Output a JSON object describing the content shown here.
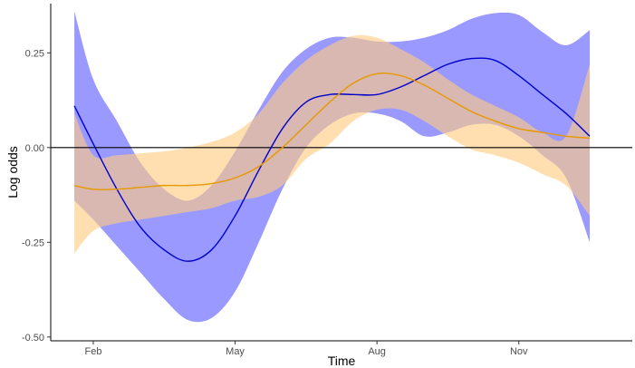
{
  "chart_data": {
    "type": "line",
    "title": "",
    "xlabel": "Time",
    "ylabel": "Log odds",
    "x_tick_labels": [
      "Feb",
      "May",
      "Aug",
      "Nov"
    ],
    "x_ticks": [
      1,
      4,
      7,
      10
    ],
    "y_tick_labels": [
      "-0.50",
      "-0.25",
      "0.00",
      "0.25"
    ],
    "y_ticks": [
      -0.5,
      -0.25,
      0.0,
      0.25
    ],
    "xlim": [
      0.1,
      12.4
    ],
    "ylim": [
      -0.51,
      0.38
    ],
    "reference_line": 0.0,
    "grid": false,
    "legend": "none",
    "x": [
      0.6,
      1.0,
      1.5,
      2.0,
      2.5,
      3.0,
      3.5,
      4.0,
      4.5,
      5.0,
      5.5,
      6.0,
      6.5,
      7.0,
      7.5,
      8.0,
      8.5,
      9.0,
      9.5,
      10.0,
      10.5,
      11.0,
      11.5
    ],
    "series": [
      {
        "color": "#0000cc",
        "band_color": "#8080ff",
        "values": [
          0.11,
          0.01,
          -0.11,
          -0.21,
          -0.27,
          -0.3,
          -0.27,
          -0.18,
          -0.06,
          0.05,
          0.12,
          0.14,
          0.14,
          0.14,
          0.16,
          0.19,
          0.22,
          0.235,
          0.23,
          0.19,
          0.14,
          0.09,
          0.03
        ],
        "upper": [
          0.36,
          0.18,
          0.07,
          -0.04,
          -0.11,
          -0.14,
          -0.1,
          -0.01,
          0.1,
          0.2,
          0.26,
          0.29,
          0.29,
          0.28,
          0.28,
          0.29,
          0.31,
          0.34,
          0.355,
          0.35,
          0.305,
          0.27,
          0.31
        ],
        "lower": [
          -0.14,
          -0.19,
          -0.26,
          -0.33,
          -0.4,
          -0.455,
          -0.45,
          -0.38,
          -0.25,
          -0.11,
          0.0,
          0.06,
          0.09,
          0.09,
          0.07,
          0.03,
          0.04,
          0.06,
          0.06,
          0.03,
          -0.02,
          -0.08,
          -0.25
        ]
      },
      {
        "color": "#e69900",
        "band_color": "#ffcc80",
        "values": [
          -0.1,
          -0.11,
          -0.11,
          -0.105,
          -0.1,
          -0.1,
          -0.095,
          -0.08,
          -0.05,
          0.0,
          0.06,
          0.12,
          0.17,
          0.195,
          0.19,
          0.165,
          0.13,
          0.095,
          0.07,
          0.05,
          0.04,
          0.03,
          0.025
        ],
        "upper": [
          0.09,
          -0.02,
          -0.02,
          -0.015,
          -0.01,
          0.0,
          0.015,
          0.04,
          0.09,
          0.17,
          0.23,
          0.27,
          0.295,
          0.29,
          0.26,
          0.225,
          0.18,
          0.14,
          0.11,
          0.08,
          0.04,
          0.03,
          0.22
        ],
        "lower": [
          -0.28,
          -0.22,
          -0.2,
          -0.19,
          -0.18,
          -0.17,
          -0.16,
          -0.14,
          -0.13,
          -0.1,
          -0.03,
          0.01,
          0.07,
          0.1,
          0.1,
          0.07,
          0.03,
          -0.005,
          -0.02,
          -0.04,
          -0.07,
          -0.1,
          -0.18
        ]
      }
    ]
  }
}
